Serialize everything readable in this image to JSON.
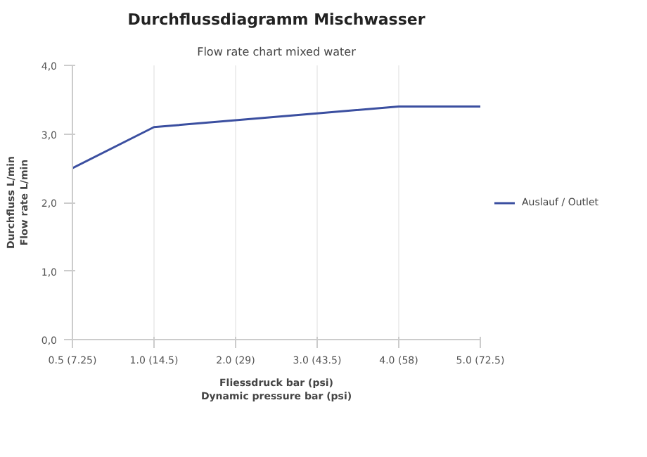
{
  "chart_data": {
    "type": "line",
    "title": "Durchflussdiagramm Mischwasser",
    "subtitle": "Flow rate chart mixed water",
    "xlabel": "Fliessdruck bar (psi)\nDynamic pressure bar (psi)",
    "ylabel": "Durchfluss L/min\nFlow rate L/min",
    "categories": [
      "0.5 (7.25)",
      "1.0 (14.5)",
      "2.0 (29)",
      "3.0 (43.5)",
      "4.0 (58)",
      "5.0 (72.5)"
    ],
    "series": [
      {
        "name": "Auslauf / Outlet",
        "color": "#3b4fa0",
        "values": [
          2.5,
          3.1,
          3.2,
          3.3,
          3.4,
          3.4
        ]
      }
    ],
    "ylim": [
      0,
      4
    ],
    "yticks": [
      {
        "value": 0,
        "label": "0,0"
      },
      {
        "value": 1,
        "label": "1,0"
      },
      {
        "value": 2,
        "label": "2,0"
      },
      {
        "value": 3,
        "label": "3,0"
      },
      {
        "value": 4,
        "label": "4,0"
      }
    ],
    "grid": "x",
    "legend": "right"
  }
}
